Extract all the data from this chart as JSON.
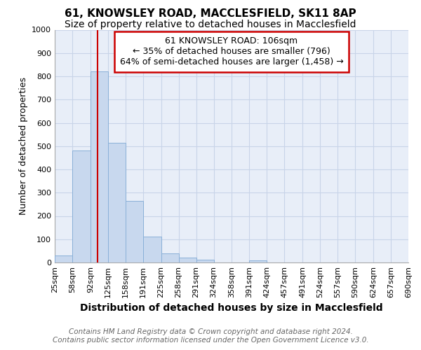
{
  "title": "61, KNOWSLEY ROAD, MACCLESFIELD, SK11 8AP",
  "subtitle": "Size of property relative to detached houses in Macclesfield",
  "xlabel": "Distribution of detached houses by size in Macclesfield",
  "ylabel": "Number of detached properties",
  "bin_edges": [
    25,
    58,
    92,
    125,
    158,
    191,
    225,
    258,
    291,
    324,
    358,
    391,
    424,
    457,
    491,
    524,
    557,
    590,
    624,
    657,
    690
  ],
  "bar_heights": [
    30,
    480,
    820,
    515,
    265,
    112,
    38,
    20,
    12,
    0,
    0,
    10,
    0,
    0,
    0,
    0,
    0,
    0,
    0,
    0
  ],
  "bar_color": "#c8d8ee",
  "bar_edgecolor": "#8ab0d8",
  "vline_x": 106,
  "vline_color": "#cc0000",
  "ylim": [
    0,
    1000
  ],
  "yticks": [
    0,
    100,
    200,
    300,
    400,
    500,
    600,
    700,
    800,
    900,
    1000
  ],
  "annotation_text": "61 KNOWSLEY ROAD: 106sqm\n← 35% of detached houses are smaller (796)\n64% of semi-detached houses are larger (1,458) →",
  "annotation_box_facecolor": "#ffffff",
  "annotation_box_edgecolor": "#cc0000",
  "footer_line1": "Contains HM Land Registry data © Crown copyright and database right 2024.",
  "footer_line2": "Contains public sector information licensed under the Open Government Licence v3.0.",
  "grid_color": "#c8d4e8",
  "plot_bg_color": "#e8eef8",
  "fig_bg_color": "#ffffff",
  "title_fontsize": 11,
  "subtitle_fontsize": 10,
  "xlabel_fontsize": 10,
  "ylabel_fontsize": 9,
  "tick_fontsize": 8,
  "annotation_fontsize": 9,
  "footer_fontsize": 7.5
}
